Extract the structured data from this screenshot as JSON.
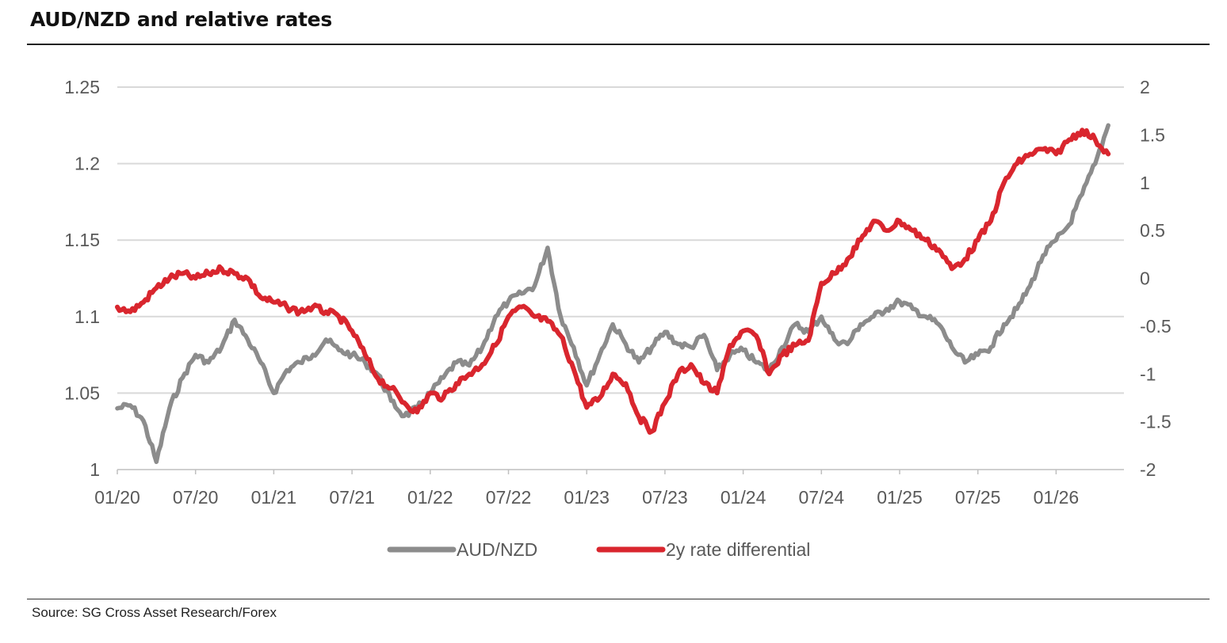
{
  "header": {
    "title": "AUD/NZD and relative rates"
  },
  "footer": {
    "source": "Source: SG Cross Asset Research/Forex"
  },
  "colors": {
    "aud_nzd": "#8c8c8c",
    "rate_diff": "#d9262e",
    "grid": "#d9d9d9",
    "tick_text": "#595959"
  },
  "chart_data": {
    "type": "line",
    "title": "AUD/NZD and relative rates",
    "x_tick_labels": [
      "01/20",
      "07/20",
      "01/21",
      "07/21",
      "01/22",
      "07/22",
      "01/23",
      "07/23",
      "01/24",
      "07/24",
      "01/25",
      "07/25",
      "01/26"
    ],
    "y_left": {
      "ticks": [
        "1.25",
        "1.2",
        "1.15",
        "1.1",
        "1.05",
        "1"
      ],
      "range": [
        1.0,
        1.25
      ]
    },
    "y_right": {
      "ticks": [
        "2",
        "1.5",
        "1",
        "0.5",
        "0",
        "-0.5",
        "-1",
        "-1.5",
        "-2"
      ],
      "range": [
        -2,
        2
      ]
    },
    "grid": "horizontal",
    "legend": {
      "placement": "bottom-center"
    },
    "series": [
      {
        "name": "AUD/NZD",
        "axis": "left",
        "color": "#8c8c8c",
        "x": [
          "2020-01",
          "2020-02",
          "2020-03",
          "2020-04",
          "2020-05",
          "2020-06",
          "2020-07",
          "2020-08",
          "2020-09",
          "2020-10",
          "2020-11",
          "2020-12",
          "2021-01",
          "2021-02",
          "2021-03",
          "2021-04",
          "2021-05",
          "2021-06",
          "2021-07",
          "2021-08",
          "2021-09",
          "2021-10",
          "2021-11",
          "2021-12",
          "2022-01",
          "2022-02",
          "2022-03",
          "2022-04",
          "2022-05",
          "2022-06",
          "2022-07",
          "2022-08",
          "2022-09",
          "2022-10",
          "2022-11",
          "2022-12",
          "2023-01",
          "2023-02",
          "2023-03",
          "2023-04",
          "2023-05",
          "2023-06",
          "2023-07",
          "2023-08",
          "2023-09",
          "2023-10",
          "2023-11",
          "2023-12",
          "2024-01",
          "2024-02",
          "2024-03",
          "2024-04",
          "2024-05",
          "2024-06",
          "2024-07",
          "2024-08",
          "2024-09",
          "2024-10",
          "2024-11",
          "2024-12",
          "2025-01",
          "2025-02",
          "2025-03",
          "2025-04",
          "2025-05",
          "2025-06",
          "2025-07",
          "2025-08",
          "2025-09",
          "2025-10",
          "2025-11",
          "2025-12",
          "2026-01",
          "2026-02",
          "2026-03",
          "2026-04",
          "2026-05"
        ],
        "values": [
          1.04,
          1.042,
          1.032,
          1.005,
          1.04,
          1.06,
          1.075,
          1.07,
          1.08,
          1.098,
          1.085,
          1.07,
          1.05,
          1.065,
          1.07,
          1.075,
          1.085,
          1.078,
          1.075,
          1.07,
          1.062,
          1.045,
          1.035,
          1.04,
          1.05,
          1.06,
          1.07,
          1.068,
          1.08,
          1.1,
          1.11,
          1.115,
          1.12,
          1.145,
          1.1,
          1.08,
          1.055,
          1.075,
          1.095,
          1.082,
          1.07,
          1.08,
          1.09,
          1.082,
          1.08,
          1.088,
          1.065,
          1.075,
          1.078,
          1.07,
          1.065,
          1.08,
          1.095,
          1.09,
          1.1,
          1.085,
          1.082,
          1.095,
          1.1,
          1.105,
          1.11,
          1.105,
          1.1,
          1.095,
          1.08,
          1.07,
          1.075,
          1.08,
          1.095,
          1.105,
          1.12,
          1.14,
          1.15,
          1.16,
          1.18,
          1.2,
          1.225
        ]
      },
      {
        "name": "2y rate differential",
        "axis": "right",
        "color": "#d9262e",
        "x": [
          "2020-01",
          "2020-02",
          "2020-03",
          "2020-04",
          "2020-05",
          "2020-06",
          "2020-07",
          "2020-08",
          "2020-09",
          "2020-10",
          "2020-11",
          "2020-12",
          "2021-01",
          "2021-02",
          "2021-03",
          "2021-04",
          "2021-05",
          "2021-06",
          "2021-07",
          "2021-08",
          "2021-09",
          "2021-10",
          "2021-11",
          "2021-12",
          "2022-01",
          "2022-02",
          "2022-03",
          "2022-04",
          "2022-05",
          "2022-06",
          "2022-07",
          "2022-08",
          "2022-09",
          "2022-10",
          "2022-11",
          "2022-12",
          "2023-01",
          "2023-02",
          "2023-03",
          "2023-04",
          "2023-05",
          "2023-06",
          "2023-07",
          "2023-08",
          "2023-09",
          "2023-10",
          "2023-11",
          "2023-12",
          "2024-01",
          "2024-02",
          "2024-03",
          "2024-04",
          "2024-05",
          "2024-06",
          "2024-07",
          "2024-08",
          "2024-09",
          "2024-10",
          "2024-11",
          "2024-12",
          "2025-01",
          "2025-02",
          "2025-03",
          "2025-04",
          "2025-05",
          "2025-06",
          "2025-07",
          "2025-08",
          "2025-09",
          "2025-10",
          "2025-11",
          "2025-12",
          "2026-01",
          "2026-02",
          "2026-03",
          "2026-04",
          "2026-05"
        ],
        "values": [
          -0.3,
          -0.35,
          -0.25,
          -0.1,
          0.0,
          0.05,
          0.0,
          0.05,
          0.1,
          0.05,
          0.0,
          -0.2,
          -0.25,
          -0.3,
          -0.35,
          -0.3,
          -0.35,
          -0.4,
          -0.55,
          -0.8,
          -1.05,
          -1.15,
          -1.3,
          -1.4,
          -1.2,
          -1.25,
          -1.1,
          -1.0,
          -0.9,
          -0.7,
          -0.4,
          -0.3,
          -0.4,
          -0.45,
          -0.6,
          -0.95,
          -1.35,
          -1.25,
          -1.0,
          -1.1,
          -1.45,
          -1.6,
          -1.3,
          -1.0,
          -0.9,
          -1.1,
          -1.2,
          -0.7,
          -0.55,
          -0.6,
          -1.0,
          -0.8,
          -0.7,
          -0.65,
          -0.05,
          0.05,
          0.2,
          0.4,
          0.6,
          0.5,
          0.6,
          0.5,
          0.4,
          0.3,
          0.1,
          0.2,
          0.4,
          0.6,
          1.0,
          1.2,
          1.3,
          1.35,
          1.3,
          1.45,
          1.55,
          1.45,
          1.3
        ]
      }
    ]
  }
}
